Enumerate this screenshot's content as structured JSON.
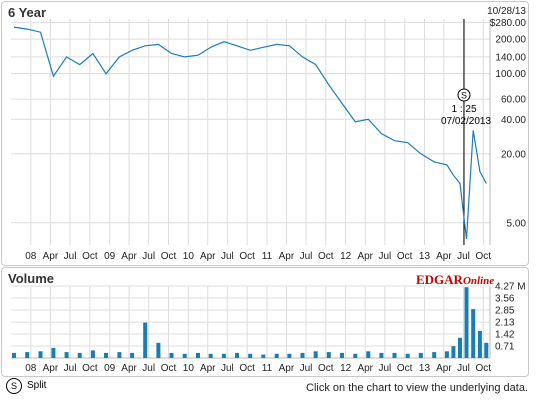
{
  "price_panel": {
    "title": "6 Year",
    "date": "10/28/13",
    "split_marker": {
      "symbol": "S",
      "ratio": "1 : 25",
      "date": "07/02/2013"
    }
  },
  "volume_panel": {
    "title": "Volume",
    "logo_main": "EDGAR",
    "logo_sub": "Online"
  },
  "footer": {
    "split_symbol": "S",
    "split_label": "Split",
    "note": "Click on the chart to view the underlying data."
  },
  "chart_data": [
    {
      "type": "line",
      "title": "6 Year",
      "log_scale": true,
      "ylim": [
        3.2,
        300
      ],
      "y_ticks": [
        5,
        20,
        40,
        60,
        100,
        140,
        200,
        280
      ],
      "y_tick_labels": [
        "5.00",
        "20.00",
        "40.00",
        "60.00",
        "100.00",
        "140.00",
        "200.00",
        "$280.00"
      ],
      "x_tick_labels": [
        "08",
        "Apr",
        "Jul",
        "Oct",
        "09",
        "Apr",
        "Jul",
        "Oct",
        "10",
        "Apr",
        "Jul",
        "Oct",
        "11",
        "Apr",
        "Jul",
        "Oct",
        "12",
        "Apr",
        "Jul",
        "Oct",
        "13",
        "Apr",
        "Jul",
        "Oct"
      ],
      "grid": true,
      "color": "#1b7db5",
      "series": [
        {
          "x": [
            "2007-10",
            "2007-12",
            "2008-02",
            "2008-04",
            "2008-06",
            "2008-08",
            "2008-10",
            "2008-12",
            "2009-02",
            "2009-04",
            "2009-06",
            "2009-08",
            "2009-10",
            "2009-12",
            "2010-02",
            "2010-04",
            "2010-06",
            "2010-08",
            "2010-10",
            "2010-12",
            "2011-02",
            "2011-04",
            "2011-06",
            "2011-08",
            "2011-10",
            "2011-12",
            "2012-02",
            "2012-04",
            "2012-06",
            "2012-08",
            "2012-10",
            "2012-12",
            "2013-02",
            "2013-04",
            "2013-05",
            "2013-06",
            "2013-07",
            "2013-08",
            "2013-09",
            "2013-10"
          ],
          "values": [
            255,
            245,
            230,
            95,
            140,
            120,
            150,
            100,
            140,
            160,
            175,
            180,
            150,
            140,
            145,
            170,
            190,
            175,
            160,
            170,
            180,
            175,
            140,
            120,
            80,
            55,
            38,
            40,
            30,
            26,
            25,
            20,
            17,
            16,
            13,
            11,
            3.6,
            32,
            14,
            11
          ]
        }
      ]
    },
    {
      "type": "bar",
      "title": "Volume",
      "units": "M",
      "ylim": [
        0,
        4.27
      ],
      "y_tick_labels": [
        "4.27 M",
        "3.56",
        "2.85",
        "2.13",
        "1.42",
        "0.71"
      ],
      "y_ticks": [
        4.27,
        3.56,
        2.85,
        2.13,
        1.42,
        0.71
      ],
      "x_tick_labels": [
        "08",
        "Apr",
        "Jul",
        "Oct",
        "09",
        "Apr",
        "Jul",
        "Oct",
        "10",
        "Apr",
        "Jul",
        "Oct",
        "11",
        "Apr",
        "Jul",
        "Oct",
        "12",
        "Apr",
        "Jul",
        "Oct",
        "13",
        "Apr",
        "Jul",
        "Oct"
      ],
      "grid": true,
      "color": "#1b7db5",
      "series": [
        {
          "x": [
            "2007-10",
            "2007-12",
            "2008-02",
            "2008-04",
            "2008-06",
            "2008-08",
            "2008-10",
            "2008-12",
            "2009-02",
            "2009-04",
            "2009-06",
            "2009-08",
            "2009-10",
            "2009-12",
            "2010-02",
            "2010-04",
            "2010-06",
            "2010-08",
            "2010-10",
            "2010-12",
            "2011-02",
            "2011-04",
            "2011-06",
            "2011-08",
            "2011-10",
            "2011-12",
            "2012-02",
            "2012-04",
            "2012-06",
            "2012-08",
            "2012-10",
            "2012-12",
            "2013-02",
            "2013-04",
            "2013-05",
            "2013-06",
            "2013-07",
            "2013-08",
            "2013-09",
            "2013-10"
          ],
          "values": [
            0.3,
            0.35,
            0.4,
            0.6,
            0.35,
            0.3,
            0.45,
            0.3,
            0.35,
            0.3,
            2.1,
            0.9,
            0.3,
            0.25,
            0.3,
            0.25,
            0.25,
            0.3,
            0.25,
            0.2,
            0.25,
            0.25,
            0.3,
            0.4,
            0.35,
            0.3,
            0.25,
            0.4,
            0.3,
            0.3,
            0.25,
            0.3,
            0.35,
            0.4,
            0.7,
            1.2,
            4.2,
            2.9,
            1.6,
            0.9
          ]
        }
      ]
    }
  ]
}
